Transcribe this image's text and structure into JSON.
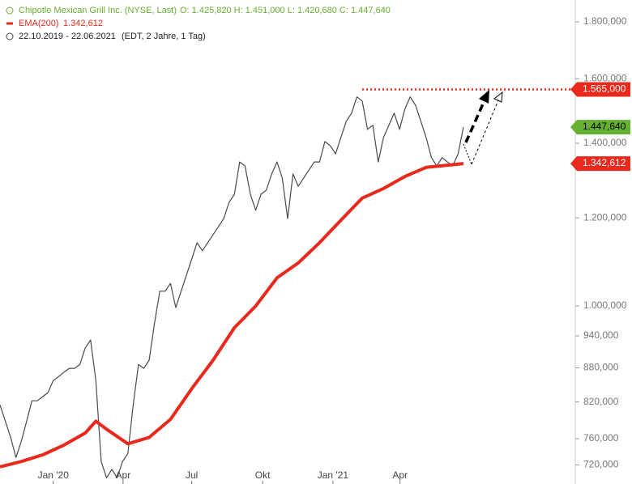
{
  "header": {
    "ohlc": "O: 1.425,820  H: 1.451,000  L: 1.420,680  C: 1.447,640",
    "ema_value": "1.342,612",
    "range": "22.10.2019 - 22.06.2021",
    "info": "(EDT, 2 Jahre, 1 Tag)"
  },
  "chart_data": {
    "type": "line",
    "log_scale": true,
    "grid": false,
    "xlim": [
      0,
      108
    ],
    "xticks": [
      {
        "value": 10,
        "label": "Jan '20"
      },
      {
        "value": 23.1,
        "label": "Apr"
      },
      {
        "value": 36,
        "label": "Jul"
      },
      {
        "value": 49.3,
        "label": "Okt"
      },
      {
        "value": 62.5,
        "label": "Jan '21"
      },
      {
        "value": 75.1,
        "label": "Apr"
      }
    ],
    "ylim": [
      692000,
      1883000
    ],
    "yticks": [
      {
        "value": 1800000,
        "label": "1.800,000"
      },
      {
        "value": 1600000,
        "label": "1.600,000"
      },
      {
        "value": 1400000,
        "label": "1.400,000"
      },
      {
        "value": 1200000,
        "label": "1.200,000"
      },
      {
        "value": 1000000,
        "label": "1.000,000"
      },
      {
        "value": 940000,
        "label": "940,000"
      },
      {
        "value": 880000,
        "label": "880,000"
      },
      {
        "value": 820000,
        "label": "820,000"
      },
      {
        "value": 760000,
        "label": "760,000"
      },
      {
        "value": 720000,
        "label": "720,000"
      }
    ],
    "series": [
      {
        "name": "Chipotle Mexican Grill Inc. (NYSE, Last)",
        "color": "#4a4a4a",
        "x": [
          0,
          1,
          2,
          3,
          4,
          5,
          6,
          7,
          8,
          9,
          10,
          11,
          12,
          13,
          14,
          15,
          16,
          17,
          18,
          19,
          20,
          21,
          22,
          23,
          24,
          25,
          26,
          27,
          28,
          29,
          30,
          31,
          32,
          33,
          34,
          35,
          36,
          37,
          38,
          39,
          40,
          41,
          42,
          43,
          44,
          45,
          46,
          47,
          48,
          49,
          50,
          51,
          52,
          53,
          54,
          55,
          56,
          57,
          58,
          59,
          60,
          61,
          62,
          63,
          64,
          65,
          66,
          67,
          68,
          69,
          70,
          71,
          72,
          73,
          74,
          75,
          76,
          77,
          78,
          79,
          80,
          81,
          82,
          83,
          84,
          85,
          86,
          87
        ],
        "values": [
          815000,
          788000,
          762000,
          731000,
          756000,
          788000,
          822000,
          822000,
          829000,
          836000,
          857000,
          864000,
          872000,
          879000,
          879000,
          886000,
          917000,
          932000,
          857000,
          725000,
          701000,
          713000,
          701000,
          725000,
          737000,
          815000,
          886000,
          879000,
          894000,
          964000,
          1031000,
          1031000,
          1048000,
          997000,
          1031000,
          1066000,
          1102000,
          1140000,
          1121000,
          1140000,
          1159000,
          1178000,
          1198000,
          1239000,
          1260000,
          1347000,
          1336000,
          1260000,
          1219000,
          1260000,
          1271000,
          1314000,
          1347000,
          1303000,
          1198000,
          1314000,
          1281000,
          1303000,
          1325000,
          1347000,
          1347000,
          1405000,
          1393000,
          1370000,
          1417000,
          1465000,
          1490000,
          1541000,
          1528000,
          1441000,
          1453000,
          1347000,
          1417000,
          1453000,
          1490000,
          1441000,
          1502000,
          1541000,
          1515000,
          1465000,
          1417000,
          1359000,
          1336000,
          1359000,
          1347000,
          1336000,
          1370000,
          1447640
        ]
      },
      {
        "name": "EMA(200)",
        "color": "#e8291c",
        "x": [
          0,
          4,
          8,
          12,
          16,
          18,
          20,
          24,
          28,
          32,
          36,
          40,
          44,
          48,
          52,
          56,
          60,
          64,
          68,
          72,
          76,
          80,
          84,
          87
        ],
        "values": [
          717000,
          725000,
          735000,
          750000,
          769000,
          788000,
          775000,
          752000,
          762000,
          791000,
          843000,
          894000,
          956000,
          1000000,
          1060000,
          1093000,
          1140000,
          1194000,
          1250000,
          1275000,
          1307000,
          1332000,
          1338000,
          1342612
        ]
      }
    ],
    "resistance": {
      "value": 1565000,
      "x_start": 68,
      "color": "#e8291c"
    },
    "markers": [
      {
        "value": 1565000,
        "label": "1.565,000",
        "color": "#e8291c"
      },
      {
        "value": 1447640,
        "label": "1.447,640",
        "color": "#66b032"
      },
      {
        "value": 1342612,
        "label": "1.342,612",
        "color": "#e8291c"
      }
    ]
  }
}
